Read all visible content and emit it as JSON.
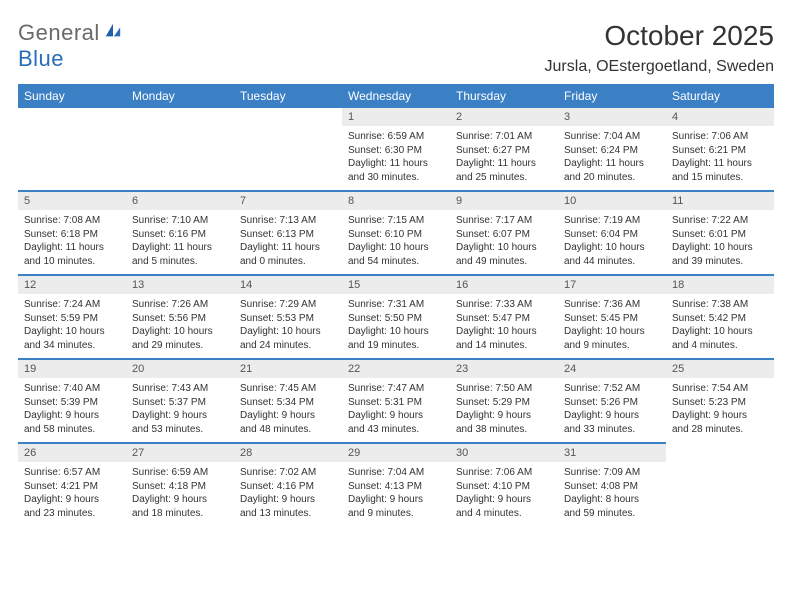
{
  "logo": {
    "word1": "General",
    "word2": "Blue"
  },
  "title": "October 2025",
  "location": "Jursla, OEstergoetland, Sweden",
  "header_bg": "#3b7fc4",
  "daynum_bg": "#ececec",
  "days_of_week": [
    "Sunday",
    "Monday",
    "Tuesday",
    "Wednesday",
    "Thursday",
    "Friday",
    "Saturday"
  ],
  "weeks": [
    [
      null,
      null,
      null,
      {
        "n": "1",
        "sr": "Sunrise: 6:59 AM",
        "ss": "Sunset: 6:30 PM",
        "d1": "Daylight: 11 hours",
        "d2": "and 30 minutes."
      },
      {
        "n": "2",
        "sr": "Sunrise: 7:01 AM",
        "ss": "Sunset: 6:27 PM",
        "d1": "Daylight: 11 hours",
        "d2": "and 25 minutes."
      },
      {
        "n": "3",
        "sr": "Sunrise: 7:04 AM",
        "ss": "Sunset: 6:24 PM",
        "d1": "Daylight: 11 hours",
        "d2": "and 20 minutes."
      },
      {
        "n": "4",
        "sr": "Sunrise: 7:06 AM",
        "ss": "Sunset: 6:21 PM",
        "d1": "Daylight: 11 hours",
        "d2": "and 15 minutes."
      }
    ],
    [
      {
        "n": "5",
        "sr": "Sunrise: 7:08 AM",
        "ss": "Sunset: 6:18 PM",
        "d1": "Daylight: 11 hours",
        "d2": "and 10 minutes."
      },
      {
        "n": "6",
        "sr": "Sunrise: 7:10 AM",
        "ss": "Sunset: 6:16 PM",
        "d1": "Daylight: 11 hours",
        "d2": "and 5 minutes."
      },
      {
        "n": "7",
        "sr": "Sunrise: 7:13 AM",
        "ss": "Sunset: 6:13 PM",
        "d1": "Daylight: 11 hours",
        "d2": "and 0 minutes."
      },
      {
        "n": "8",
        "sr": "Sunrise: 7:15 AM",
        "ss": "Sunset: 6:10 PM",
        "d1": "Daylight: 10 hours",
        "d2": "and 54 minutes."
      },
      {
        "n": "9",
        "sr": "Sunrise: 7:17 AM",
        "ss": "Sunset: 6:07 PM",
        "d1": "Daylight: 10 hours",
        "d2": "and 49 minutes."
      },
      {
        "n": "10",
        "sr": "Sunrise: 7:19 AM",
        "ss": "Sunset: 6:04 PM",
        "d1": "Daylight: 10 hours",
        "d2": "and 44 minutes."
      },
      {
        "n": "11",
        "sr": "Sunrise: 7:22 AM",
        "ss": "Sunset: 6:01 PM",
        "d1": "Daylight: 10 hours",
        "d2": "and 39 minutes."
      }
    ],
    [
      {
        "n": "12",
        "sr": "Sunrise: 7:24 AM",
        "ss": "Sunset: 5:59 PM",
        "d1": "Daylight: 10 hours",
        "d2": "and 34 minutes."
      },
      {
        "n": "13",
        "sr": "Sunrise: 7:26 AM",
        "ss": "Sunset: 5:56 PM",
        "d1": "Daylight: 10 hours",
        "d2": "and 29 minutes."
      },
      {
        "n": "14",
        "sr": "Sunrise: 7:29 AM",
        "ss": "Sunset: 5:53 PM",
        "d1": "Daylight: 10 hours",
        "d2": "and 24 minutes."
      },
      {
        "n": "15",
        "sr": "Sunrise: 7:31 AM",
        "ss": "Sunset: 5:50 PM",
        "d1": "Daylight: 10 hours",
        "d2": "and 19 minutes."
      },
      {
        "n": "16",
        "sr": "Sunrise: 7:33 AM",
        "ss": "Sunset: 5:47 PM",
        "d1": "Daylight: 10 hours",
        "d2": "and 14 minutes."
      },
      {
        "n": "17",
        "sr": "Sunrise: 7:36 AM",
        "ss": "Sunset: 5:45 PM",
        "d1": "Daylight: 10 hours",
        "d2": "and 9 minutes."
      },
      {
        "n": "18",
        "sr": "Sunrise: 7:38 AM",
        "ss": "Sunset: 5:42 PM",
        "d1": "Daylight: 10 hours",
        "d2": "and 4 minutes."
      }
    ],
    [
      {
        "n": "19",
        "sr": "Sunrise: 7:40 AM",
        "ss": "Sunset: 5:39 PM",
        "d1": "Daylight: 9 hours",
        "d2": "and 58 minutes."
      },
      {
        "n": "20",
        "sr": "Sunrise: 7:43 AM",
        "ss": "Sunset: 5:37 PM",
        "d1": "Daylight: 9 hours",
        "d2": "and 53 minutes."
      },
      {
        "n": "21",
        "sr": "Sunrise: 7:45 AM",
        "ss": "Sunset: 5:34 PM",
        "d1": "Daylight: 9 hours",
        "d2": "and 48 minutes."
      },
      {
        "n": "22",
        "sr": "Sunrise: 7:47 AM",
        "ss": "Sunset: 5:31 PM",
        "d1": "Daylight: 9 hours",
        "d2": "and 43 minutes."
      },
      {
        "n": "23",
        "sr": "Sunrise: 7:50 AM",
        "ss": "Sunset: 5:29 PM",
        "d1": "Daylight: 9 hours",
        "d2": "and 38 minutes."
      },
      {
        "n": "24",
        "sr": "Sunrise: 7:52 AM",
        "ss": "Sunset: 5:26 PM",
        "d1": "Daylight: 9 hours",
        "d2": "and 33 minutes."
      },
      {
        "n": "25",
        "sr": "Sunrise: 7:54 AM",
        "ss": "Sunset: 5:23 PM",
        "d1": "Daylight: 9 hours",
        "d2": "and 28 minutes."
      }
    ],
    [
      {
        "n": "26",
        "sr": "Sunrise: 6:57 AM",
        "ss": "Sunset: 4:21 PM",
        "d1": "Daylight: 9 hours",
        "d2": "and 23 minutes."
      },
      {
        "n": "27",
        "sr": "Sunrise: 6:59 AM",
        "ss": "Sunset: 4:18 PM",
        "d1": "Daylight: 9 hours",
        "d2": "and 18 minutes."
      },
      {
        "n": "28",
        "sr": "Sunrise: 7:02 AM",
        "ss": "Sunset: 4:16 PM",
        "d1": "Daylight: 9 hours",
        "d2": "and 13 minutes."
      },
      {
        "n": "29",
        "sr": "Sunrise: 7:04 AM",
        "ss": "Sunset: 4:13 PM",
        "d1": "Daylight: 9 hours",
        "d2": "and 9 minutes."
      },
      {
        "n": "30",
        "sr": "Sunrise: 7:06 AM",
        "ss": "Sunset: 4:10 PM",
        "d1": "Daylight: 9 hours",
        "d2": "and 4 minutes."
      },
      {
        "n": "31",
        "sr": "Sunrise: 7:09 AM",
        "ss": "Sunset: 4:08 PM",
        "d1": "Daylight: 8 hours",
        "d2": "and 59 minutes."
      },
      null
    ]
  ]
}
